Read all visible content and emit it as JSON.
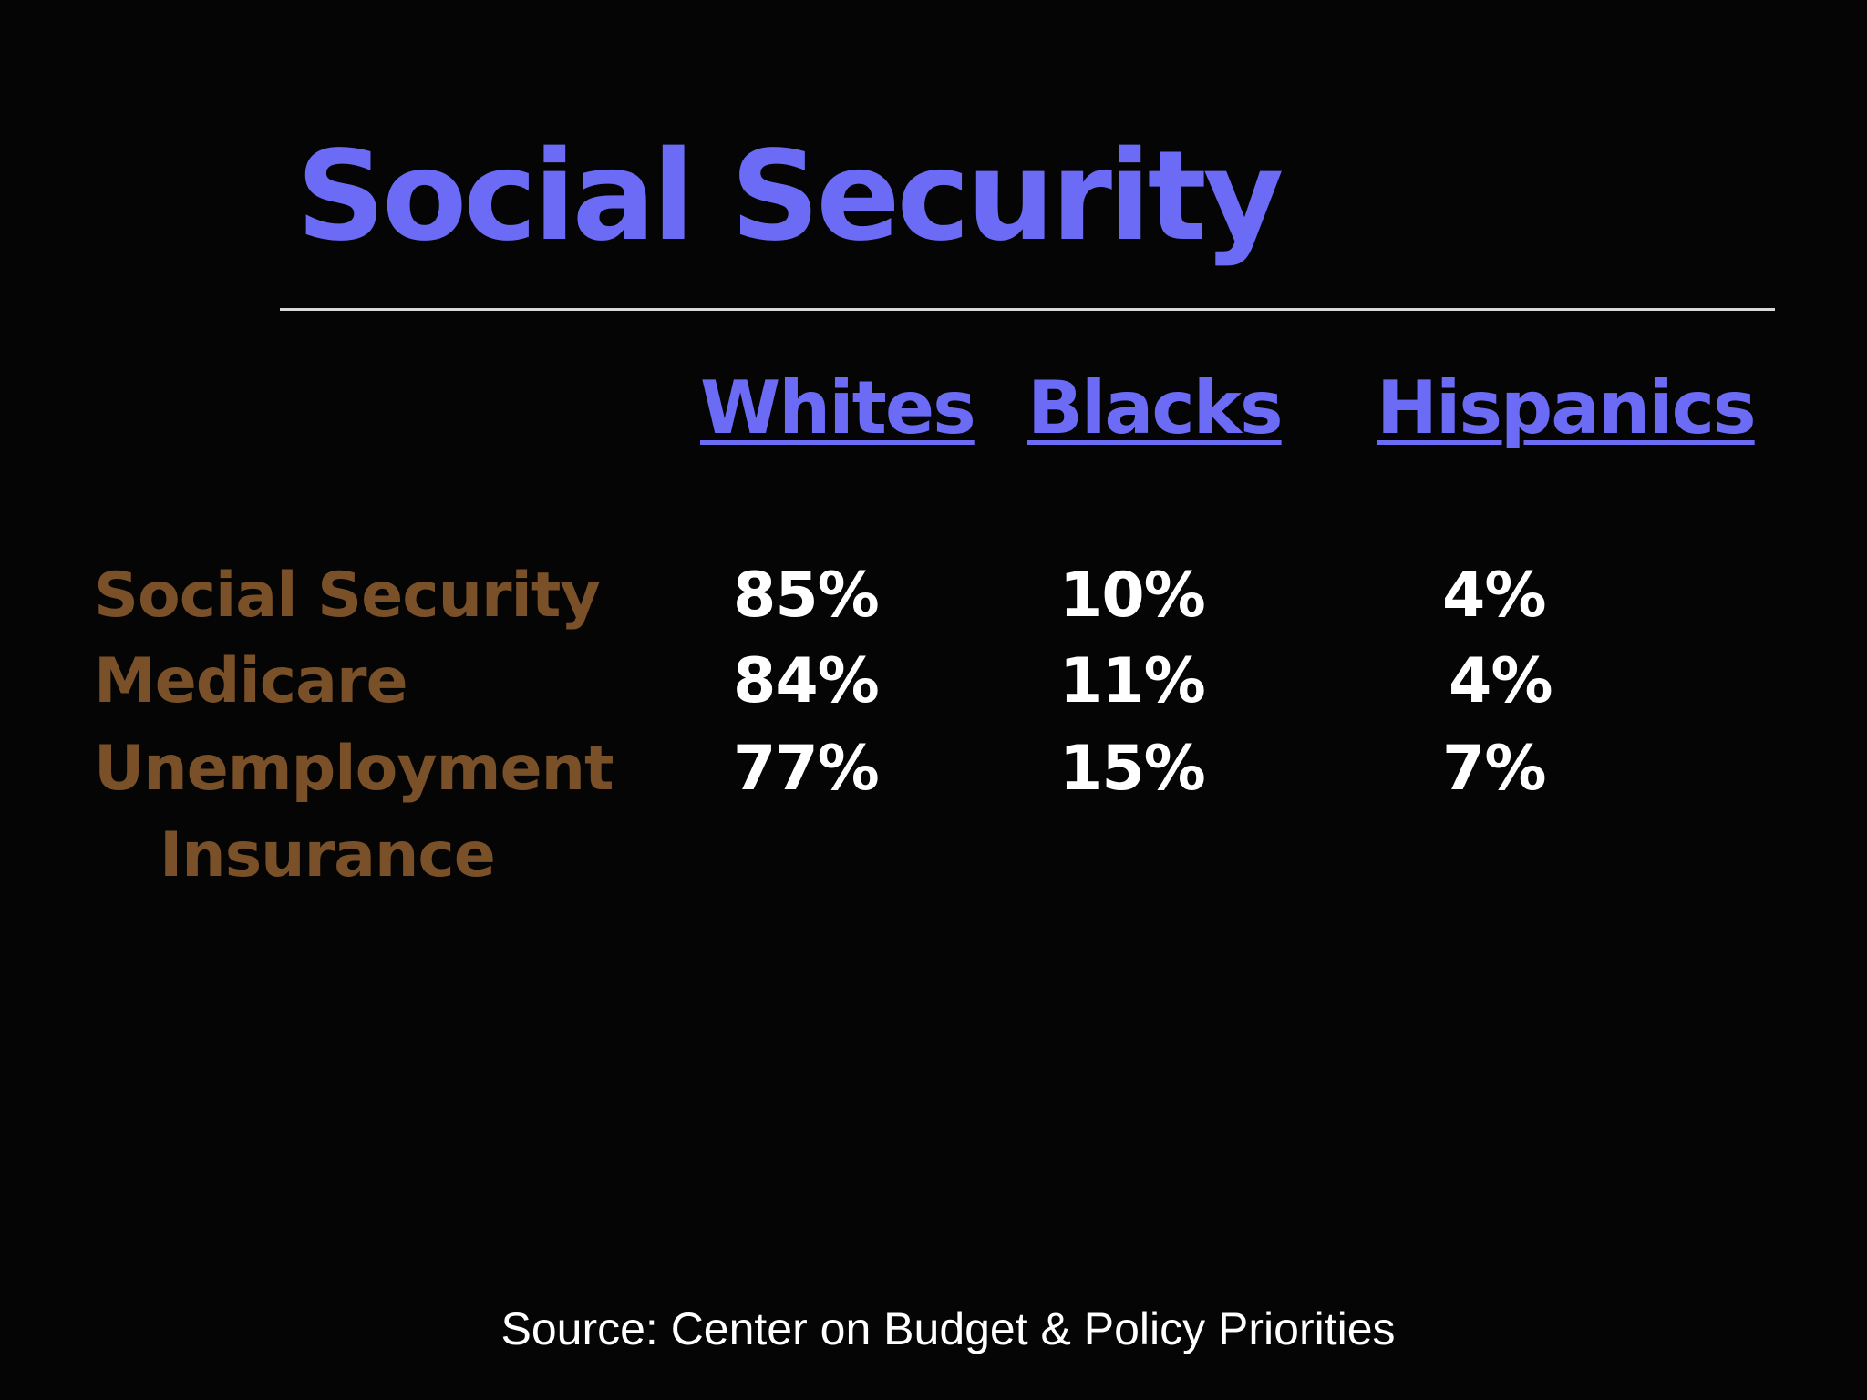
{
  "slide": {
    "title": "Social Security",
    "source": "Source: Center on Budget & Policy Priorities"
  },
  "table": {
    "columns": [
      "Whites",
      "Blacks",
      "Hispanics"
    ],
    "rows": [
      {
        "label": "Social Security",
        "values": [
          "85%",
          "10%",
          "4%"
        ]
      },
      {
        "label": "Medicare",
        "values": [
          "84%",
          "11%",
          "4%"
        ]
      },
      {
        "label_line1": "Unemployment",
        "label_line2": "Insurance",
        "values": [
          "77%",
          "15%",
          "7%"
        ]
      }
    ]
  },
  "colors": {
    "background": "#050505",
    "title": "#6b6bf5",
    "column_header": "#6b6bf5",
    "row_label": "#7a5028",
    "values": "#ffffff",
    "rule": "#d9d9d9"
  }
}
